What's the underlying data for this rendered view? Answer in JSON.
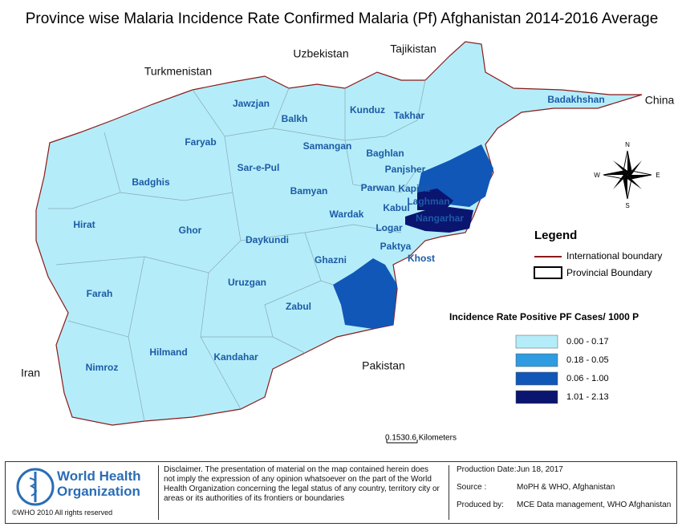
{
  "title": "Province wise Malaria Incidence Rate Confirmed Malaria (Pf) Afghanistan 2014-2016 Average",
  "countries": [
    "Uzbekistan",
    "Tajikistan",
    "Turkmenistan",
    "China",
    "Iran",
    "Pakistan"
  ],
  "provinces": [
    "Jawzjan",
    "Balkh",
    "Kunduz",
    "Takhar",
    "Badakhshan",
    "Faryab",
    "Samangan",
    "Baghlan",
    "Panjsher",
    "Sar-e-Pul",
    "Badghis",
    "Bamyan",
    "Parwan",
    "Kapisa",
    "Laghman",
    "Kabul",
    "Nangarhar",
    "Wardak",
    "Hirat",
    "Ghor",
    "Daykundi",
    "Logar",
    "Paktya",
    "Khost",
    "Ghazni",
    "Uruzgan",
    "Farah",
    "Zabul",
    "Hilmand",
    "Kandahar",
    "Nimroz"
  ],
  "compass": [
    "N",
    "S",
    "E",
    "W"
  ],
  "legend": {
    "title": "Legend",
    "boundaries": [
      {
        "label": "International boundary",
        "color": "#8b1a1a"
      },
      {
        "label": "Provincial Boundary",
        "color": "#000000"
      }
    ],
    "rate_title": "Incidence Rate Positive PF  Cases/ 1000 P",
    "bins": [
      {
        "label": "0.00 - 0.17",
        "color": "#b4edf9"
      },
      {
        "label": "0.18 - 0.05",
        "color": "#2f9be0"
      },
      {
        "label": "0.06 - 1.00",
        "color": "#1157b8"
      },
      {
        "label": "1.01 - 2.13",
        "color": "#0a1570"
      }
    ]
  },
  "scale": "0.1530.6 Kilometers",
  "footer": {
    "logo_line1": "World Health",
    "logo_line2": "Organization",
    "copyright": "©WHO 2010 All rights reserved",
    "disclaimer": "Disclaimer. The presentation of material on the map contained herein does not imply the expression of any opinion whatsoever on the part of the World Health Organization concerning the legal status of any country, territory city or areas or its authorities of its frontiers or boundaries",
    "info": [
      {
        "label": "Production Date:",
        "value": "Jun 18, 2017"
      },
      {
        "label": "Source :",
        "value": "MoPH & WHO, Afghanistan"
      },
      {
        "label": "Produced by:",
        "value": "MCE Data management, WHO Afghanistan"
      }
    ]
  }
}
